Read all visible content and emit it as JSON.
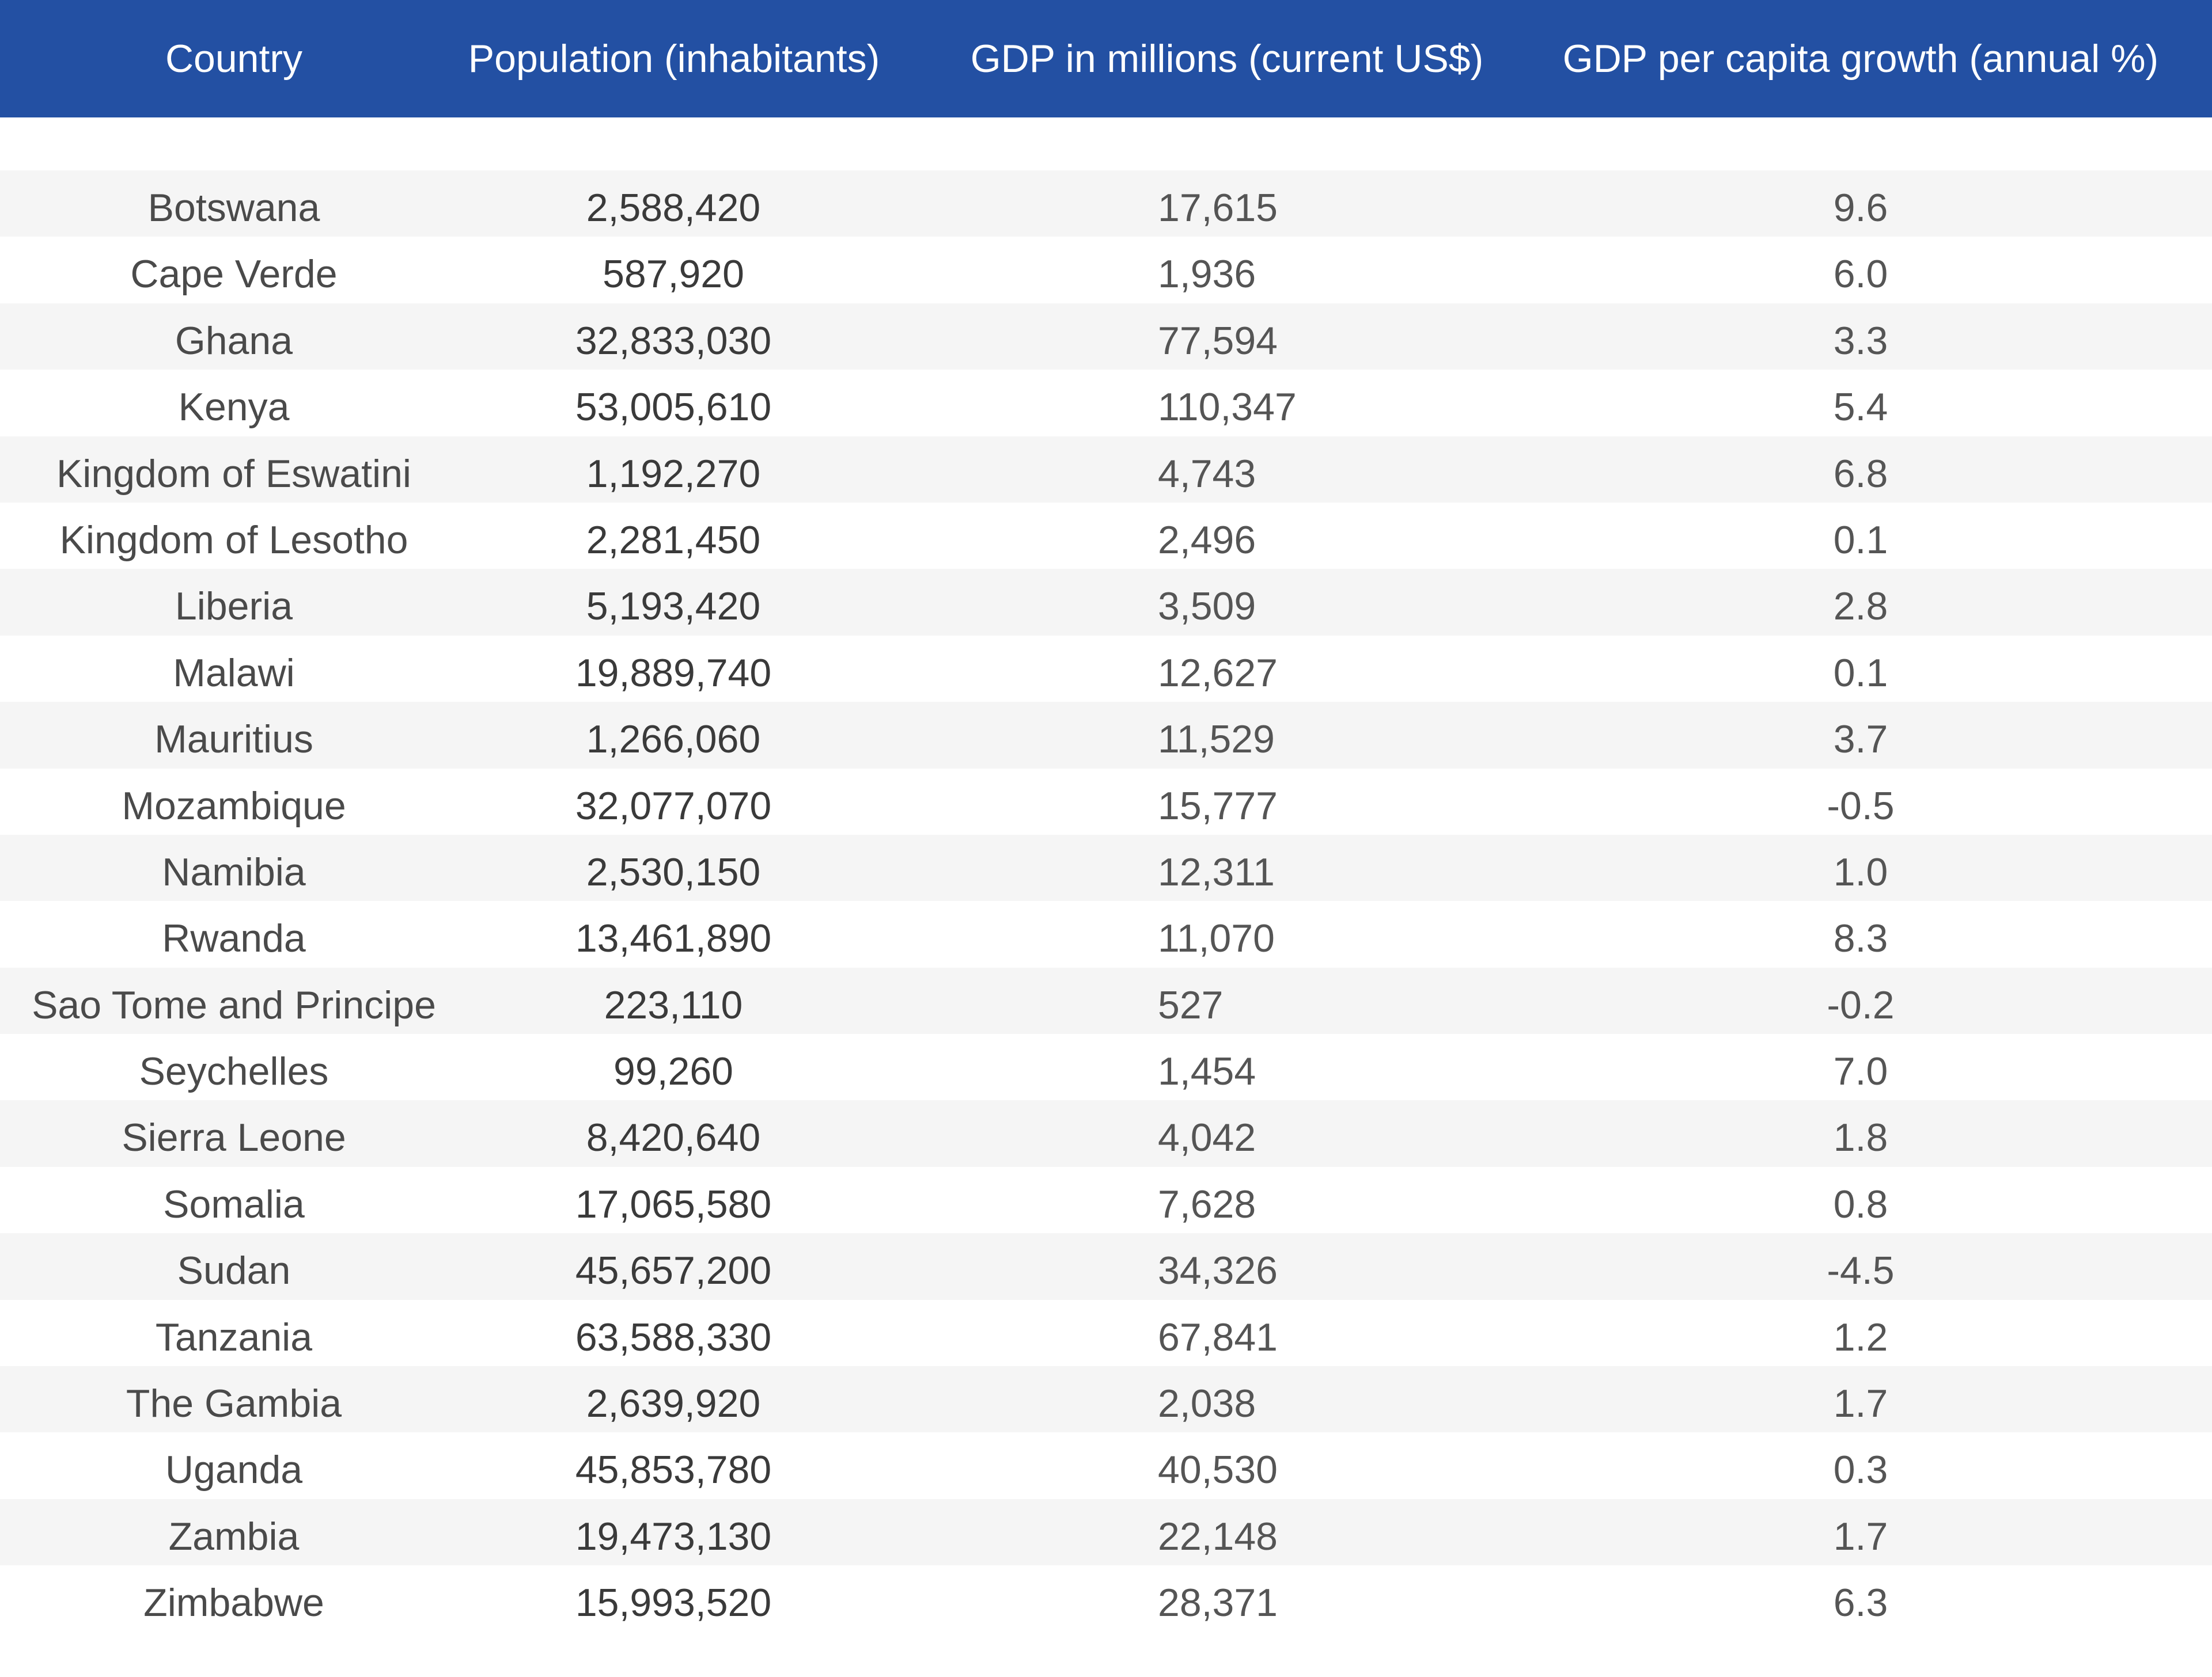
{
  "table": {
    "headers": [
      "Country",
      "Population (inhabitants)",
      "GDP in millions (current US$)",
      "GDP per capita growth (annual %)"
    ],
    "rows": [
      [
        "Botswana",
        "2,588,420",
        "17,615",
        "9.6"
      ],
      [
        "Cape Verde",
        "587,920",
        "1,936",
        "6.0"
      ],
      [
        "Ghana",
        "32,833,030",
        "77,594",
        "3.3"
      ],
      [
        "Kenya",
        "53,005,610",
        "110,347",
        "5.4"
      ],
      [
        "Kingdom of Eswatini",
        "1,192,270",
        "4,743",
        "6.8"
      ],
      [
        "Kingdom of Lesotho",
        "2,281,450",
        "2,496",
        "0.1"
      ],
      [
        "Liberia",
        "5,193,420",
        "3,509",
        "2.8"
      ],
      [
        "Malawi",
        "19,889,740",
        "12,627",
        "0.1"
      ],
      [
        "Mauritius",
        "1,266,060",
        "11,529",
        "3.7"
      ],
      [
        "Mozambique",
        "32,077,070",
        "15,777",
        "-0.5"
      ],
      [
        "Namibia",
        "2,530,150",
        "12,311",
        "1.0"
      ],
      [
        "Rwanda",
        "13,461,890",
        "11,070",
        "8.3"
      ],
      [
        "Sao Tome and Principe",
        "223,110",
        "527",
        "-0.2"
      ],
      [
        "Seychelles",
        "99,260",
        "1,454",
        "7.0"
      ],
      [
        "Sierra Leone",
        "8,420,640",
        "4,042",
        "1.8"
      ],
      [
        "Somalia",
        "17,065,580",
        "7,628",
        "0.8"
      ],
      [
        "Sudan",
        "45,657,200",
        "34,326",
        "-4.5"
      ],
      [
        "Tanzania",
        "63,588,330",
        "67,841",
        "1.2"
      ],
      [
        "The Gambia",
        "2,639,920",
        "2,038",
        "1.7"
      ],
      [
        "Uganda",
        "45,853,780",
        "40,530",
        "0.3"
      ],
      [
        "Zambia",
        "19,473,130",
        "22,148",
        "1.7"
      ],
      [
        "Zimbabwe",
        "15,993,520",
        "28,371",
        "6.3"
      ]
    ]
  },
  "colors": {
    "header_bg": "#2350a3",
    "header_text": "#ffffff",
    "stripe": "#f5f5f5"
  }
}
